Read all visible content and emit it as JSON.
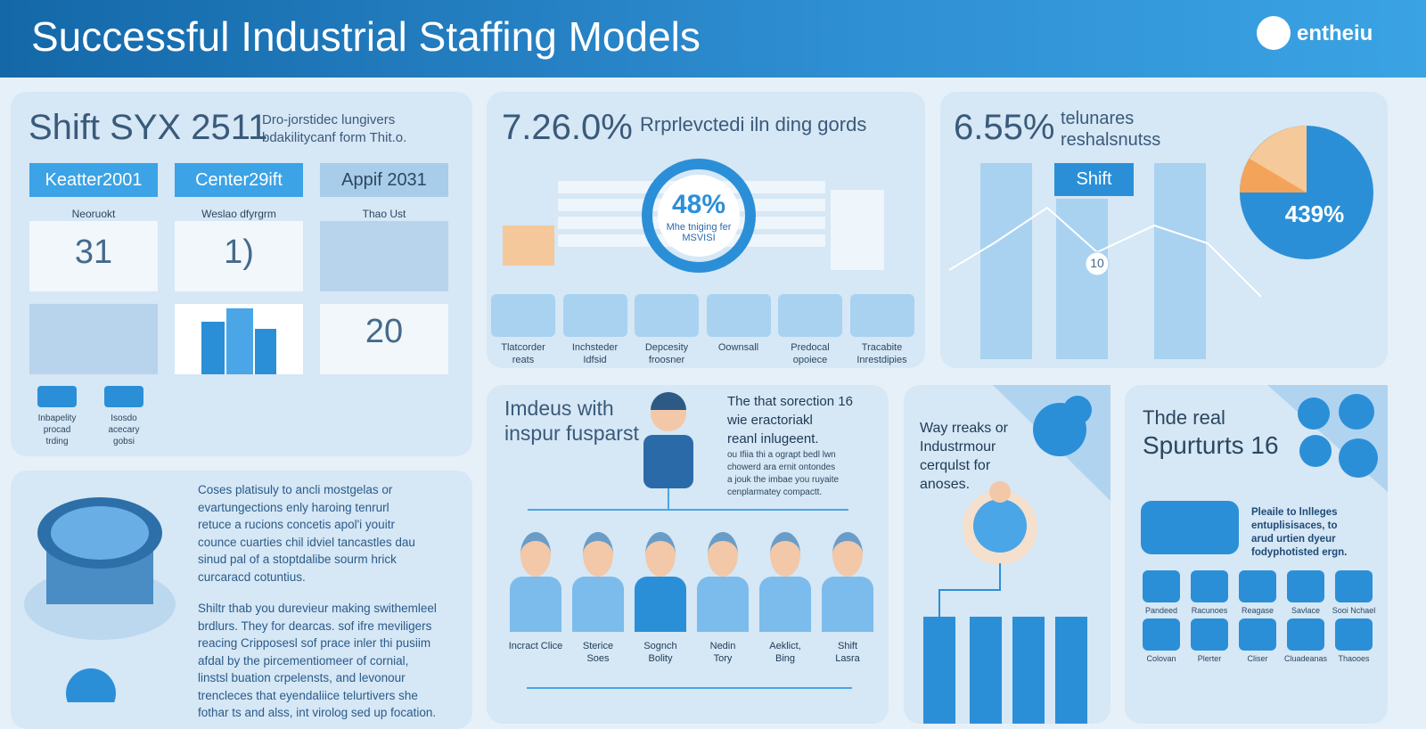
{
  "header": {
    "title": "Successful Industrial Staffing Models",
    "logo": "entheiu"
  },
  "panel_shift": {
    "heading": "Shift SYX 2511",
    "subtitle": [
      "Dro-jorstidec lungivers",
      "bdakilitycanf form Thit.o."
    ],
    "tabs": [
      "Keatter2001",
      "Center29ift",
      "Appif 2031"
    ],
    "columns": [
      "Neoruokt",
      "Weslao dfyrgrm",
      "Thao Ust"
    ],
    "cards": [
      "31",
      "1)",
      "20"
    ],
    "badges": [
      [
        "Inbapelity",
        "procad",
        "trding"
      ],
      [
        "Isosdo",
        "acecary",
        "gobsi"
      ]
    ]
  },
  "panel_rate": {
    "stat": "7.26.0%",
    "caption": "Rrprlevctedi iln ding gords",
    "donut_value": "48%",
    "donut_caption": [
      "Mhe tniging fer",
      "MSVISI"
    ],
    "icons": [
      [
        "Tlatcorder",
        "reats"
      ],
      [
        "Inchsteder",
        "Idfsid"
      ],
      [
        "Depcesity",
        "froosner"
      ],
      [
        "Oownsall"
      ],
      [
        "Predocal",
        "opoiece"
      ],
      [
        "Tracabite",
        "Inrestdipies"
      ]
    ]
  },
  "panel_share": {
    "stat": "6.55%",
    "caption": [
      "telunares",
      "reshalsnutss"
    ],
    "badge": "Shift",
    "node": "10",
    "pie_label": "439%"
  },
  "panel_text": {
    "paragraphs": [
      [
        "Coses platisuly to ancli mostgelas or",
        "evartungections enly haroing tenrurl",
        "retuce a rucions concetis apol'i youitr",
        "counce cuarties chil idviel tancastles dau",
        "sinud  pal of a stoptdalibe sourm hrick",
        "curcaracd cotuntius."
      ],
      [
        "Shiltr thab you durevieur making swithemleel",
        "brdlurs. They for dearcas. sof ifre meviligers",
        "reacing Cripposesl sof prace inler thi pusiim",
        "afdal by the pircementiomeer of cornial,",
        "linstsl buation crpelensts, and levonour",
        "trencleces that eyendaliice telurtivers she",
        "fothar ts and alss, int virolog sed up focation."
      ]
    ]
  },
  "panel_team": {
    "heading": [
      "Imdeus with",
      "inspur fusparst"
    ],
    "lead": [
      "The that sorection 16",
      "wie eractoriakl",
      "reanl inlugeent."
    ],
    "note": [
      "ou Ifiia thi a ograpt bedl lwn",
      "chowerd ara ernit ontondes",
      "a jouk the imbae you ruyaite",
      "cenplarmatey compactt."
    ],
    "people": [
      [
        "Incract Clice"
      ],
      [
        "Sterice",
        "Soes"
      ],
      [
        "Sognch",
        "Bolity"
      ],
      [
        "Nedin",
        "Tory"
      ],
      [
        "Aeklict,",
        "Bing"
      ],
      [
        "Shift",
        "Lasra"
      ]
    ]
  },
  "panel_way": {
    "text": [
      "Way rreaks or",
      "Industrmour",
      "cerqulst for",
      "anoses."
    ]
  },
  "panel_support": {
    "kicker": "Thde real",
    "heading": "Spurturts 16",
    "text": [
      "Pleaile to lnlleges",
      "entuplisisaces, to",
      "arud urtien dyeur",
      "fodyphotisted ergn."
    ],
    "icons": [
      "Pandeed",
      "Racunoes",
      "Reagase",
      "Savlace",
      "Sooi Nchael",
      "Colovan",
      "Plerter",
      "Cliser",
      "Cluadeanas",
      "Thaooes"
    ]
  }
}
